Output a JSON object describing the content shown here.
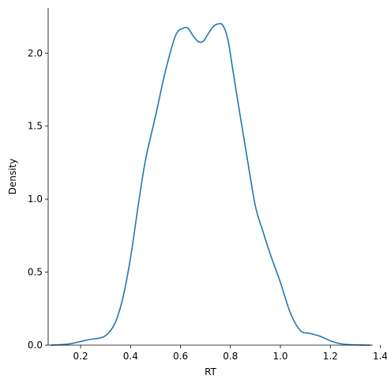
{
  "chart_data": {
    "type": "line",
    "title": "",
    "xlabel": "RT",
    "ylabel": "Density",
    "xlim": [
      0.07,
      1.37
    ],
    "ylim": [
      0.0,
      2.31
    ],
    "xticks": [
      0.2,
      0.4,
      0.6,
      0.8,
      1.0,
      1.2,
      1.4
    ],
    "xtick_labels": [
      "0.2",
      "0.4",
      "0.6",
      "0.8",
      "1.0",
      "1.2",
      "1.4"
    ],
    "yticks": [
      0.0,
      0.5,
      1.0,
      1.5,
      2.0
    ],
    "ytick_labels": [
      "0.0",
      "0.5",
      "1.0",
      "1.5",
      "2.0"
    ],
    "grid": false,
    "legend": false,
    "series": [
      {
        "color": "#1f77b4",
        "x": [
          0.08,
          0.12,
          0.16,
          0.2,
          0.24,
          0.28,
          0.31,
          0.34,
          0.37,
          0.4,
          0.43,
          0.46,
          0.5,
          0.54,
          0.58,
          0.61,
          0.63,
          0.65,
          0.67,
          0.69,
          0.71,
          0.73,
          0.75,
          0.77,
          0.79,
          0.81,
          0.84,
          0.87,
          0.9,
          0.93,
          0.96,
          1.0,
          1.04,
          1.08,
          1.12,
          1.16,
          1.2,
          1.24,
          1.28,
          1.32,
          1.36
        ],
        "y": [
          0.0,
          0.003,
          0.01,
          0.025,
          0.04,
          0.05,
          0.08,
          0.16,
          0.33,
          0.6,
          0.95,
          1.27,
          1.57,
          1.88,
          2.12,
          2.17,
          2.17,
          2.12,
          2.08,
          2.08,
          2.13,
          2.18,
          2.2,
          2.19,
          2.09,
          1.88,
          1.56,
          1.25,
          0.95,
          0.78,
          0.62,
          0.43,
          0.22,
          0.1,
          0.08,
          0.06,
          0.03,
          0.01,
          0.003,
          0.001,
          0.0
        ]
      }
    ]
  }
}
